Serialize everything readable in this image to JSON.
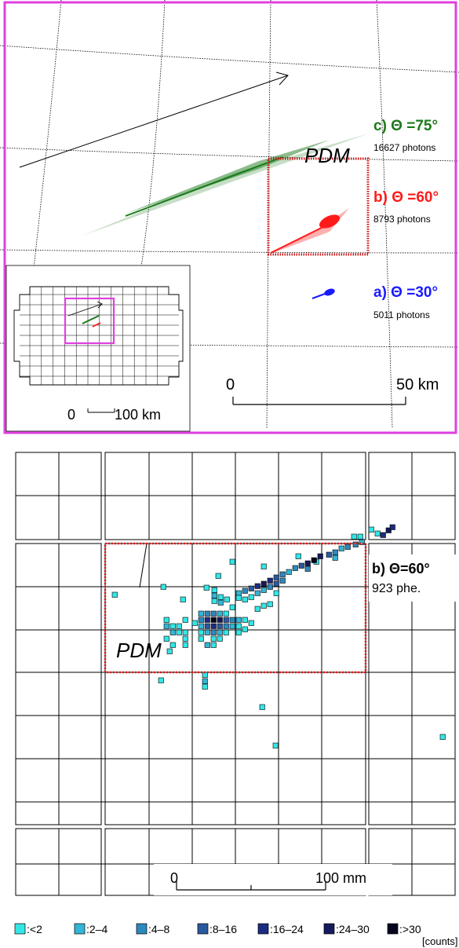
{
  "top_panel": {
    "frame_color": "#e040e0",
    "tracks": [
      {
        "label": "c) Θ =75°",
        "photons": "16627 photons",
        "color": "#1a7a1a"
      },
      {
        "label": "b) Θ =60°",
        "photons": "8793 photons",
        "color": "#ff1a1a"
      },
      {
        "label": "a) Θ =30°",
        "photons": "5011 photons",
        "color": "#1a1aff"
      }
    ],
    "pdm_label": "PDM",
    "scale": {
      "start": "0",
      "end": "50 km"
    },
    "inset_scale": {
      "start": "0",
      "end": "100 km"
    }
  },
  "bottom_panel": {
    "track_label": "b) Θ=60°",
    "phe": "923 phe.",
    "pdm_label": "PDM",
    "scale": {
      "start": "0",
      "end": "100 mm"
    },
    "legend": [
      {
        "label": ":<2",
        "color": "#33e6e6"
      },
      {
        "label": ":2–4",
        "color": "#33b5d6"
      },
      {
        "label": ":4–8",
        "color": "#2d88bd"
      },
      {
        "label": ":8–16",
        "color": "#2a5a9e"
      },
      {
        "label": ":16–24",
        "color": "#1c2c80"
      },
      {
        "label": ":24–30",
        "color": "#141a5c"
      },
      {
        "label": ":>30",
        "color": "#050520"
      }
    ],
    "legend_unit": "[counts]"
  }
}
